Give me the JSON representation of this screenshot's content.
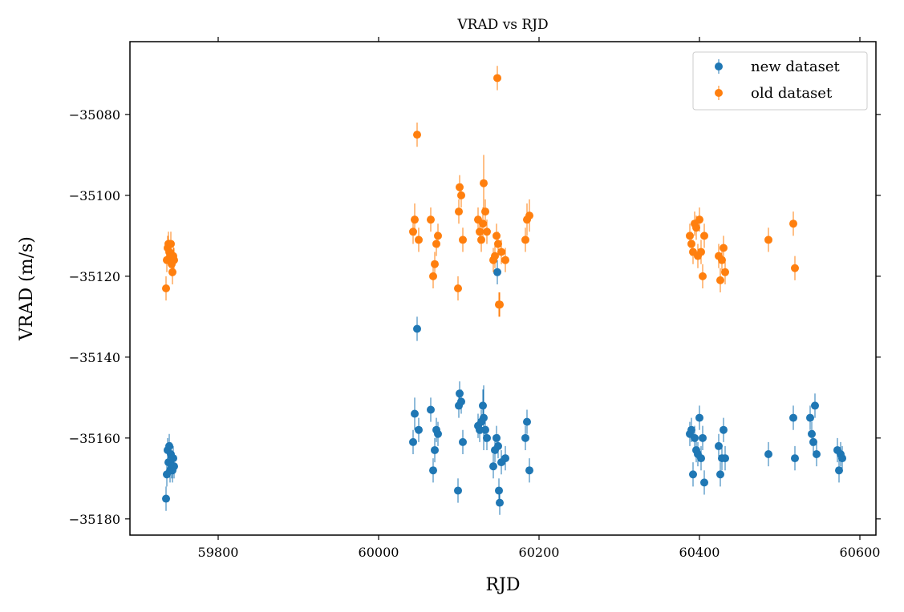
{
  "chart_data": {
    "type": "scatter",
    "title": "VRAD vs RJD",
    "xlabel": "RJD",
    "ylabel": "VRAD (m/s)",
    "xlim": [
      59690,
      60620
    ],
    "ylim": [
      -35184,
      -35062
    ],
    "xticks": [
      59800,
      60000,
      60200,
      60400,
      60600
    ],
    "yticks": [
      -35080,
      -35100,
      -35120,
      -35140,
      -35160,
      -35180
    ],
    "grid": false,
    "legend_position": "top-right",
    "marker": "errorbar-dot",
    "series": [
      {
        "name": "new dataset",
        "color": "#1f77b4",
        "x": [
          59735,
          59736,
          59737,
          59738,
          59739,
          59740,
          59741,
          59742,
          59743,
          59744,
          59745,
          60043,
          60045,
          60048,
          60050,
          60065,
          60068,
          60070,
          60072,
          60074,
          60099,
          60100,
          60101,
          60103,
          60105,
          60124,
          60126,
          60128,
          60130,
          60131,
          60133,
          60135,
          60143,
          60145,
          60147,
          60148,
          60149,
          60150,
          60151,
          60153,
          60158,
          60183,
          60185,
          60188,
          60388,
          60390,
          60392,
          60394,
          60396,
          60398,
          60400,
          60402,
          60404,
          60406,
          60424,
          60426,
          60428,
          60430,
          60432,
          60486,
          60517,
          60519,
          60538,
          60540,
          60542,
          60544,
          60546,
          60572,
          60574,
          60576,
          60578
        ],
        "y": [
          -35175,
          -35169,
          -35163,
          -35166,
          -35162,
          -35168,
          -35164,
          -35167,
          -35168,
          -35165,
          -35167,
          -35161,
          -35154,
          -35133,
          -35158,
          -35153,
          -35168,
          -35163,
          -35158,
          -35159,
          -35173,
          -35152,
          -35149,
          -35151,
          -35161,
          -35157,
          -35158,
          -35156,
          -35152,
          -35155,
          -35158,
          -35160,
          -35167,
          -35163,
          -35160,
          -35119,
          -35162,
          -35173,
          -35176,
          -35166,
          -35165,
          -35160,
          -35156,
          -35168,
          -35159,
          -35158,
          -35169,
          -35160,
          -35163,
          -35164,
          -35155,
          -35165,
          -35160,
          -35171,
          -35162,
          -35169,
          -35165,
          -35158,
          -35165,
          -35164,
          -35155,
          -35165,
          -35155,
          -35159,
          -35161,
          -35152,
          -35164,
          -35163,
          -35168,
          -35164,
          -35165
        ],
        "yerr": [
          3,
          3,
          3,
          3,
          3,
          3,
          3,
          3,
          3,
          3,
          3,
          3,
          4,
          3,
          3,
          3,
          3,
          3,
          3,
          3,
          3,
          3,
          3,
          3,
          3,
          3,
          3,
          3,
          4,
          8,
          3,
          3,
          3,
          3,
          3,
          3,
          3,
          3,
          3,
          3,
          3,
          3,
          3,
          3,
          3,
          3,
          3,
          3,
          3,
          3,
          3,
          3,
          3,
          3,
          3,
          3,
          3,
          3,
          3,
          3,
          3,
          3,
          3,
          3,
          3,
          3,
          3,
          3,
          3,
          3,
          3
        ]
      },
      {
        "name": "old dataset",
        "color": "#ff7f0e",
        "x": [
          59735,
          59736,
          59737,
          59738,
          59739,
          59740,
          59741,
          59742,
          59743,
          59744,
          59745,
          60043,
          60045,
          60048,
          60050,
          60065,
          60068,
          60070,
          60072,
          60074,
          60099,
          60100,
          60101,
          60103,
          60105,
          60124,
          60126,
          60128,
          60130,
          60131,
          60133,
          60135,
          60143,
          60145,
          60147,
          60148,
          60149,
          60150,
          60151,
          60153,
          60158,
          60183,
          60185,
          60188,
          60388,
          60390,
          60392,
          60394,
          60396,
          60398,
          60400,
          60402,
          60404,
          60406,
          60424,
          60426,
          60428,
          60430,
          60432,
          60486,
          60517,
          60519
        ],
        "y": [
          -35123,
          -35116,
          -35113,
          -35112,
          -35114,
          -35115,
          -35112,
          -35117,
          -35119,
          -35115,
          -35116,
          -35109,
          -35106,
          -35085,
          -35111,
          -35106,
          -35120,
          -35117,
          -35112,
          -35110,
          -35123,
          -35104,
          -35098,
          -35100,
          -35111,
          -35106,
          -35109,
          -35111,
          -35107,
          -35097,
          -35104,
          -35109,
          -35116,
          -35115,
          -35110,
          -35071,
          -35112,
          -35127,
          -35127,
          -35114,
          -35116,
          -35111,
          -35106,
          -35105,
          -35110,
          -35112,
          -35114,
          -35107,
          -35108,
          -35115,
          -35106,
          -35114,
          -35120,
          -35110,
          -35115,
          -35121,
          -35116,
          -35113,
          -35119,
          -35111,
          -35107,
          -35118
        ],
        "yerr": [
          3,
          3,
          3,
          3,
          3,
          3,
          3,
          3,
          3,
          3,
          3,
          3,
          4,
          3,
          3,
          3,
          3,
          3,
          3,
          3,
          3,
          3,
          3,
          3,
          3,
          3,
          3,
          3,
          4,
          7,
          3,
          3,
          3,
          3,
          3,
          3,
          3,
          3,
          3,
          3,
          3,
          3,
          4,
          4,
          3,
          3,
          3,
          3,
          3,
          3,
          3,
          3,
          3,
          3,
          3,
          3,
          3,
          3,
          3,
          3,
          3,
          3
        ]
      }
    ]
  }
}
